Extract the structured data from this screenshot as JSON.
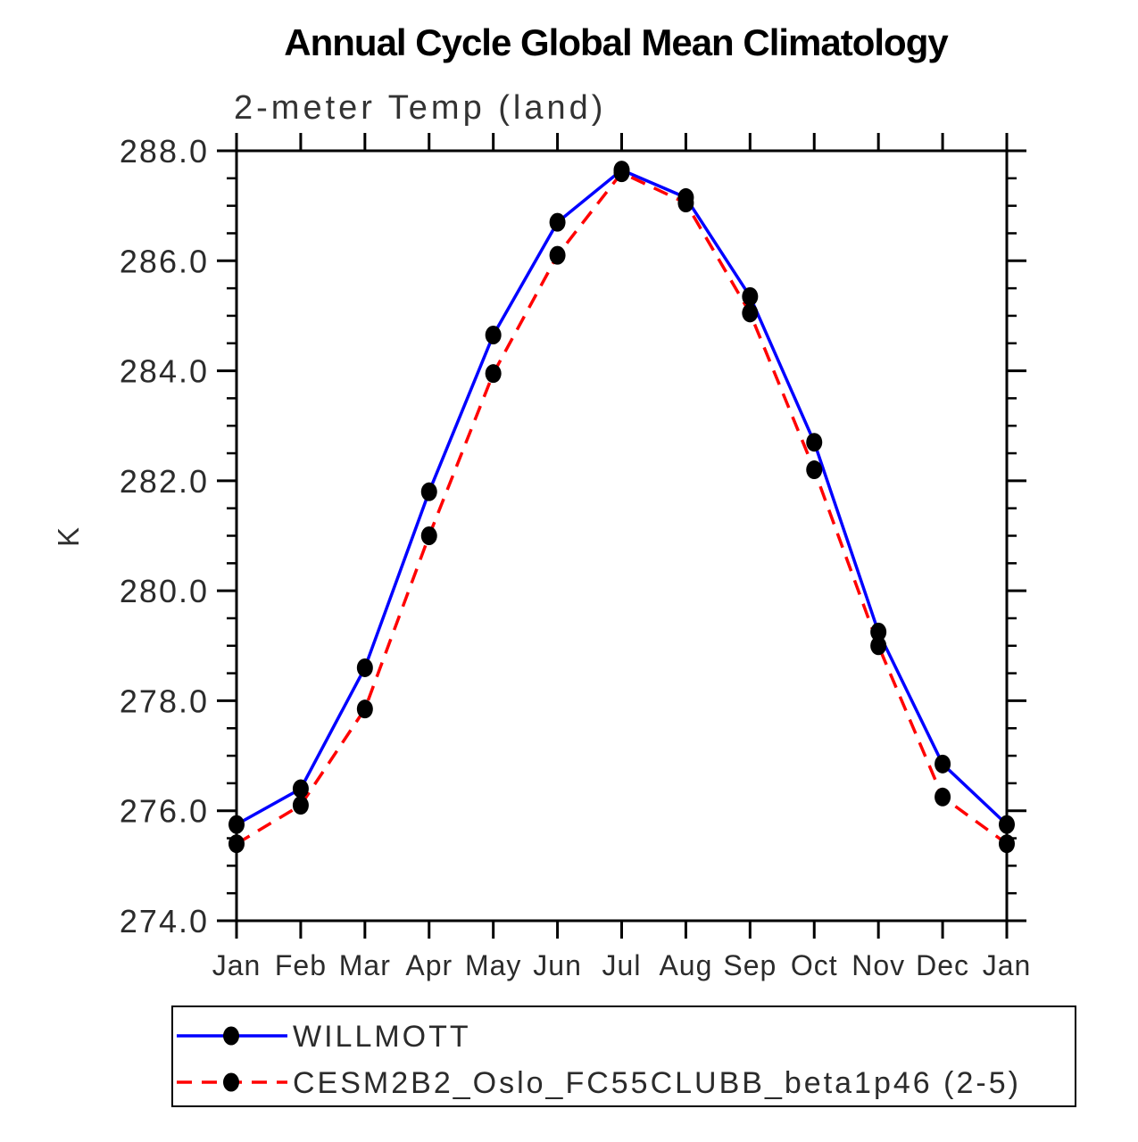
{
  "page": {
    "background": "#ffffff"
  },
  "chart_data": {
    "type": "line",
    "title": "Annual Cycle Global Mean Climatology",
    "subtitle": "2-meter Temp (land)",
    "ylabel": "K",
    "xlabel": "",
    "categories": [
      "Jan",
      "Feb",
      "Mar",
      "Apr",
      "May",
      "Jun",
      "Jul",
      "Aug",
      "Sep",
      "Oct",
      "Nov",
      "Dec",
      "Jan"
    ],
    "ylim": [
      274.0,
      288.0
    ],
    "ytick_interval": 2.0,
    "ytick_minor_interval": 0.5,
    "ytick_labels": [
      "274.0",
      "276.0",
      "278.0",
      "280.0",
      "282.0",
      "284.0",
      "286.0",
      "288.0"
    ],
    "grid": false,
    "legend_position": "bottom-boxed",
    "axis_color": "#000000",
    "marker_shape": "filled-circle",
    "marker_color": "#000000",
    "series": [
      {
        "name": "WILLMOTT",
        "color": "#0000ff",
        "line_style": "solid",
        "values": [
          275.75,
          276.4,
          278.6,
          281.8,
          284.65,
          286.7,
          287.65,
          287.15,
          285.35,
          282.7,
          279.25,
          276.85,
          275.75
        ]
      },
      {
        "name": "CESM2B2_Oslo_FC55CLUBB_beta1p46 (2-5)",
        "color": "#ff0000",
        "line_style": "dashed",
        "values": [
          275.4,
          276.1,
          277.85,
          281.0,
          283.95,
          286.1,
          287.6,
          287.05,
          285.05,
          282.2,
          279.0,
          276.25,
          275.4
        ]
      }
    ]
  }
}
